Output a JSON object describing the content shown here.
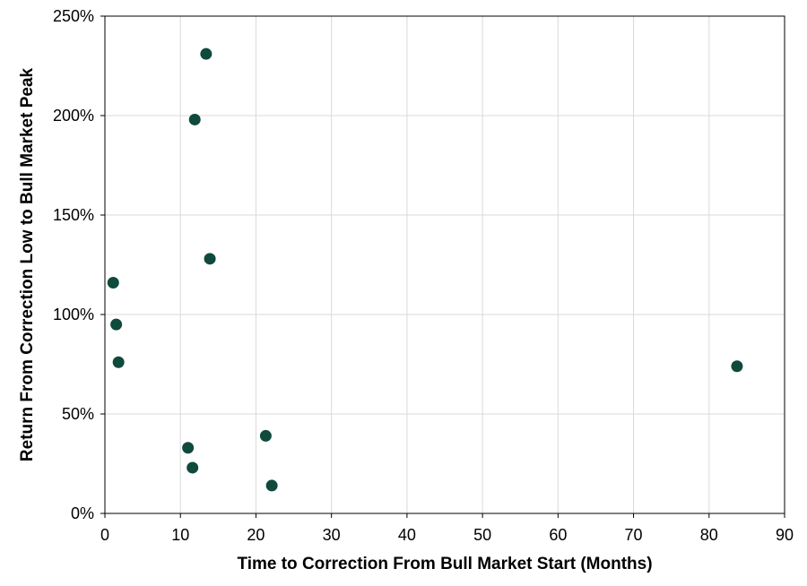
{
  "chart_data": {
    "type": "scatter",
    "title": "",
    "xlabel": "Time to Correction From Bull Market Start (Months)",
    "ylabel": "Return From Correction Low to Bull Market Peak",
    "xlim": [
      0,
      90
    ],
    "ylim": [
      0,
      250
    ],
    "x_ticks": [
      0,
      10,
      20,
      30,
      40,
      50,
      60,
      70,
      80,
      90
    ],
    "y_ticks": [
      0,
      50,
      100,
      150,
      200,
      250
    ],
    "x_tick_labels": [
      "0",
      "10",
      "20",
      "30",
      "40",
      "50",
      "60",
      "70",
      "80",
      "90"
    ],
    "y_tick_labels": [
      "0%",
      "50%",
      "100%",
      "150%",
      "200%",
      "250%"
    ],
    "grid": true,
    "legend": "none",
    "marker_color": "#0f4a3c",
    "grid_color": "#d9d9d9",
    "points": [
      {
        "x": 1.1,
        "y": 116
      },
      {
        "x": 1.5,
        "y": 95
      },
      {
        "x": 1.8,
        "y": 76
      },
      {
        "x": 11.0,
        "y": 33
      },
      {
        "x": 11.6,
        "y": 23
      },
      {
        "x": 11.9,
        "y": 198
      },
      {
        "x": 13.4,
        "y": 231
      },
      {
        "x": 13.9,
        "y": 128
      },
      {
        "x": 21.3,
        "y": 39
      },
      {
        "x": 22.1,
        "y": 14
      },
      {
        "x": 83.7,
        "y": 74
      }
    ]
  }
}
